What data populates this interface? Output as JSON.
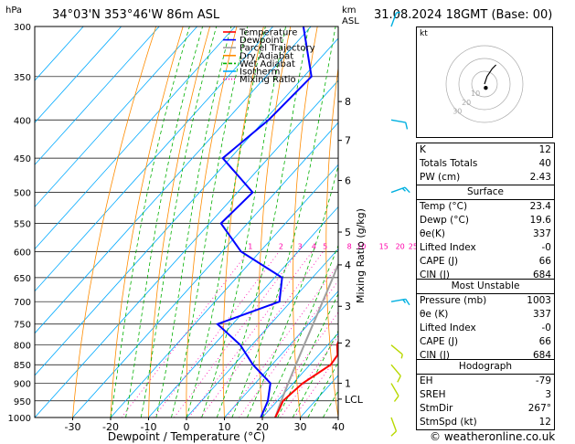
{
  "header": {
    "hpa_label": "hPa",
    "location": "34°03'N  353°46'W  86m  ASL",
    "km_label": "km",
    "asl_label": "ASL",
    "datetime": "31.08.2024  18GMT  (Base: 00)"
  },
  "chart_data": {
    "type": "skew-t log-p sounding",
    "xlabel": "Dewpoint / Temperature (°C)",
    "ylabel": "Mixing Ratio (g/kg)",
    "x_ticks": [
      -30,
      -20,
      -10,
      0,
      10,
      20,
      30,
      40
    ],
    "xlim": [
      -40,
      40
    ],
    "pressure_levels": [
      300,
      350,
      400,
      450,
      500,
      550,
      600,
      650,
      700,
      750,
      800,
      850,
      900,
      950,
      1000
    ],
    "km_ticks": [
      {
        "label": "8",
        "p": 378
      },
      {
        "label": "7",
        "p": 426
      },
      {
        "label": "6",
        "p": 482
      },
      {
        "label": "5",
        "p": 565
      },
      {
        "label": "4",
        "p": 625
      },
      {
        "label": "3",
        "p": 710
      },
      {
        "label": "2",
        "p": 795
      },
      {
        "label": "1",
        "p": 900
      },
      {
        "label": "LCL",
        "p": 945
      }
    ],
    "mixing_ratio_labels": [
      "1",
      "2",
      "3",
      "4",
      "5",
      "8",
      "10",
      "15",
      "20",
      "25"
    ],
    "mixing_ratio_values": [
      1,
      2,
      3,
      4,
      5,
      8,
      10,
      15,
      20,
      25
    ],
    "legend": [
      "Temperature",
      "Dewpoint",
      "Parcel Trajectory",
      "Dry Adiabat",
      "Wet Adiabat",
      "Isotherm",
      "Mixing Ratio"
    ],
    "colors": {
      "temperature": "#ff0000",
      "dewpoint": "#0000ff",
      "parcel": "#a0a0a0",
      "dry_adiabat": "#ff8c00",
      "wet_adiabat": "#00b000",
      "isotherm": "#00aaff",
      "mixing_ratio": "#ff00aa"
    },
    "temperature_profile": [
      {
        "p": 1000,
        "t": 23.4
      },
      {
        "p": 975,
        "t": 22.5
      },
      {
        "p": 950,
        "t": 21.5
      },
      {
        "p": 925,
        "t": 22.0
      },
      {
        "p": 900,
        "t": 22.5
      },
      {
        "p": 875,
        "t": 24.0
      },
      {
        "p": 850,
        "t": 25.5
      },
      {
        "p": 825,
        "t": 25.0
      },
      {
        "p": 800,
        "t": 22.5
      },
      {
        "p": 750,
        "t": 19.5
      },
      {
        "p": 700,
        "t": 14.5
      },
      {
        "p": 650,
        "t": 9.5
      },
      {
        "p": 600,
        "t": 4.0
      },
      {
        "p": 550,
        "t": -1.5
      },
      {
        "p": 500,
        "t": -7.0
      },
      {
        "p": 450,
        "t": -12.5
      },
      {
        "p": 400,
        "t": -19.0
      },
      {
        "p": 350,
        "t": -26.5
      },
      {
        "p": 300,
        "t": -35.0
      }
    ],
    "dewpoint_profile": [
      {
        "p": 1000,
        "t": 19.6
      },
      {
        "p": 950,
        "t": 17.5
      },
      {
        "p": 900,
        "t": 14.0
      },
      {
        "p": 850,
        "t": 5.0
      },
      {
        "p": 800,
        "t": -3.0
      },
      {
        "p": 750,
        "t": -14.0
      },
      {
        "p": 700,
        "t": -3.0
      },
      {
        "p": 650,
        "t": -8.0
      },
      {
        "p": 600,
        "t": -25.0
      },
      {
        "p": 550,
        "t": -37.0
      },
      {
        "p": 500,
        "t": -36.0
      },
      {
        "p": 450,
        "t": -52.0
      },
      {
        "p": 400,
        "t": -49.0
      },
      {
        "p": 350,
        "t": -48.0
      },
      {
        "p": 300,
        "t": -62.0
      }
    ],
    "parcel_profile": [
      {
        "p": 1000,
        "t": 23.4
      },
      {
        "p": 950,
        "t": 21.0
      },
      {
        "p": 900,
        "t": 18.7
      },
      {
        "p": 850,
        "t": 16.3
      },
      {
        "p": 800,
        "t": 13.8
      },
      {
        "p": 750,
        "t": 11.2
      },
      {
        "p": 700,
        "t": 8.4
      },
      {
        "p": 650,
        "t": 5.4
      },
      {
        "p": 600,
        "t": 2.0
      },
      {
        "p": 550,
        "t": -1.8
      },
      {
        "p": 500,
        "t": -6.0
      },
      {
        "p": 450,
        "t": -11.0
      },
      {
        "p": 400,
        "t": -17.0
      },
      {
        "p": 350,
        "t": -24.5
      },
      {
        "p": 300,
        "t": -33.5
      }
    ],
    "wind_barbs": [
      {
        "p": 1000,
        "dir": 340,
        "kt": 10
      },
      {
        "p": 900,
        "dir": 330,
        "kt": 10
      },
      {
        "p": 850,
        "dir": 320,
        "kt": 10
      },
      {
        "p": 800,
        "dir": 310,
        "kt": 5
      },
      {
        "p": 700,
        "dir": 260,
        "kt": 15
      },
      {
        "p": 500,
        "dir": 250,
        "kt": 15
      },
      {
        "p": 400,
        "dir": 280,
        "kt": 10
      },
      {
        "p": 300,
        "dir": 200,
        "kt": 5
      }
    ]
  },
  "hodograph": {
    "label": "kt",
    "ring_labels": [
      "10",
      "20",
      "30"
    ],
    "trace": [
      [
        0,
        0
      ],
      [
        1,
        3
      ],
      [
        2,
        6
      ],
      [
        4,
        9
      ],
      [
        6,
        12
      ],
      [
        9,
        15
      ]
    ],
    "storm_motion": [
      1,
      -3
    ]
  },
  "indices": {
    "rows": [
      {
        "label": "K",
        "value": "12"
      },
      {
        "label": "Totals Totals",
        "value": "40"
      },
      {
        "label": "PW (cm)",
        "value": "2.43"
      }
    ]
  },
  "surface": {
    "title": "Surface",
    "rows": [
      {
        "label": "Temp (°C)",
        "value": "23.4"
      },
      {
        "label": "Dewp (°C)",
        "value": "19.6"
      },
      {
        "label": "θe(K)",
        "value": "337"
      },
      {
        "label": "Lifted Index",
        "value": "-0"
      },
      {
        "label": "CAPE (J)",
        "value": "66"
      },
      {
        "label": "CIN (J)",
        "value": "684"
      }
    ]
  },
  "most_unstable": {
    "title": "Most Unstable",
    "rows": [
      {
        "label": "Pressure (mb)",
        "value": "1003"
      },
      {
        "label": "θe (K)",
        "value": "337"
      },
      {
        "label": "Lifted Index",
        "value": "-0"
      },
      {
        "label": "CAPE (J)",
        "value": "66"
      },
      {
        "label": "CIN (J)",
        "value": "684"
      }
    ]
  },
  "hodograph_table": {
    "title": "Hodograph",
    "rows": [
      {
        "label": "EH",
        "value": "-79"
      },
      {
        "label": "SREH",
        "value": "3"
      },
      {
        "label": "StmDir",
        "value": "267°"
      },
      {
        "label": "StmSpd (kt)",
        "value": "12"
      }
    ]
  },
  "credit": "© weatheronline.co.uk"
}
